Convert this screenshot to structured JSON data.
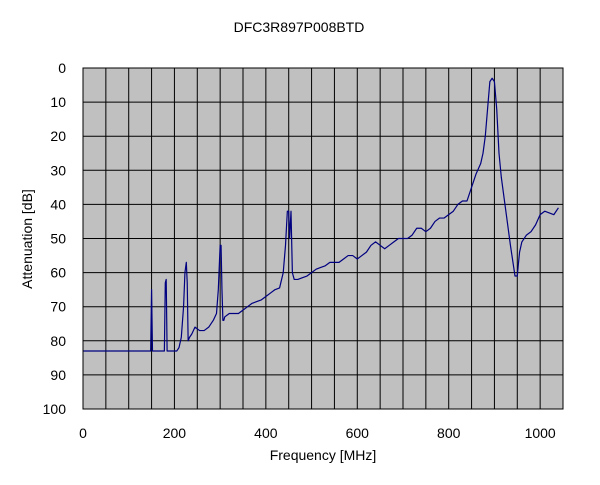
{
  "chart_data": {
    "type": "line",
    "title": "DFC3R897P008BTD",
    "xlabel": "Frequency [MHz]",
    "ylabel": "Attenuation [dB]",
    "xlim": [
      0,
      1050
    ],
    "ylim": [
      0,
      100
    ],
    "y_inverted": true,
    "x_ticks": [
      0,
      200,
      400,
      600,
      800,
      1000
    ],
    "y_ticks": [
      0,
      10,
      20,
      30,
      40,
      50,
      60,
      70,
      80,
      90,
      100
    ],
    "x_grid_step": 50,
    "y_grid_step": 10,
    "grid": true,
    "legend": "none",
    "colors": {
      "plot_background": "#c0c0c0",
      "grid": "#000000",
      "line": "#000080"
    },
    "series": [
      {
        "x": [
          0,
          145,
          148,
          150,
          152,
          154,
          157,
          160,
          175,
          178,
          180,
          182,
          184,
          187,
          190,
          205,
          210,
          215,
          220,
          223,
          226,
          228,
          230,
          233,
          238,
          245,
          255,
          265,
          275,
          285,
          292,
          296,
          300,
          302,
          304,
          306,
          308,
          310,
          320,
          330,
          340,
          350,
          360,
          370,
          380,
          390,
          400,
          410,
          420,
          430,
          438,
          443,
          447,
          450,
          452,
          455,
          458,
          462,
          470,
          480,
          490,
          500,
          510,
          520,
          530,
          540,
          550,
          560,
          570,
          580,
          590,
          600,
          610,
          620,
          630,
          640,
          650,
          660,
          670,
          680,
          690,
          700,
          710,
          720,
          730,
          740,
          750,
          760,
          770,
          780,
          790,
          800,
          810,
          820,
          830,
          840,
          850,
          860,
          870,
          875,
          880,
          885,
          890,
          895,
          900,
          905,
          910,
          915,
          925,
          935,
          945,
          950,
          952,
          955,
          960,
          970,
          980,
          990,
          1000,
          1010,
          1020,
          1030,
          1040
        ],
        "y": [
          83,
          83,
          83,
          65,
          83,
          83,
          83,
          83,
          83,
          83,
          63,
          62,
          83,
          83,
          83,
          83,
          82,
          79,
          70,
          60,
          57,
          63,
          80,
          79,
          78,
          76,
          77,
          77,
          76,
          74,
          72,
          65,
          52,
          52,
          65,
          74,
          74,
          73,
          72,
          72,
          72,
          71,
          70,
          69,
          68.5,
          68,
          67,
          66,
          65,
          64.5,
          60,
          52,
          42,
          42,
          50,
          42,
          60,
          62,
          62,
          61.5,
          61,
          60,
          59,
          58.5,
          58,
          57,
          57,
          57,
          56,
          55,
          55,
          56,
          55,
          54,
          52,
          51,
          52,
          53,
          52,
          51,
          50,
          50,
          50,
          49,
          47,
          47,
          48,
          47,
          45,
          44,
          44,
          43,
          42,
          40,
          39,
          39,
          35,
          31,
          28,
          25,
          20,
          12,
          4,
          3,
          4,
          12,
          25,
          32,
          42,
          52,
          61,
          61,
          58,
          54,
          51,
          49,
          48,
          46,
          43,
          42,
          42.5,
          43,
          41
        ]
      }
    ]
  }
}
